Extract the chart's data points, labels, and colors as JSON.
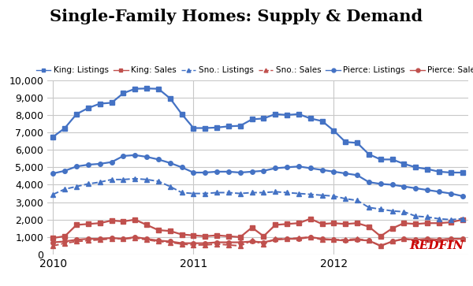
{
  "title": "Single-Family Homes: Supply & Demand",
  "background_color": "#ffffff",
  "grid_color": "#c8c8c8",
  "ylim": [
    0,
    10000
  ],
  "yticks": [
    0,
    1000,
    2000,
    3000,
    4000,
    5000,
    6000,
    7000,
    8000,
    9000,
    10000
  ],
  "n_points": 36,
  "x_tick_positions": [
    0,
    12,
    24
  ],
  "x_tick_labels": [
    "2010",
    "2011",
    "2012"
  ],
  "series": [
    {
      "label": "King: Listings",
      "color": "#4472c4",
      "marker": "s",
      "markersize": 4,
      "linewidth": 1.6,
      "linestyle": "-",
      "values": [
        6750,
        7250,
        8050,
        8400,
        8650,
        8700,
        9250,
        9500,
        9520,
        9500,
        8950,
        8050,
        7250,
        7250,
        7280,
        7350,
        7380,
        7750,
        7800,
        8050,
        8000,
        8050,
        7800,
        7650,
        7100,
        6450,
        6400,
        5750,
        5450,
        5450,
        5200,
        5000,
        4900,
        4750,
        4700,
        4700
      ]
    },
    {
      "label": "King: Sales",
      "color": "#c0504d",
      "marker": "s",
      "markersize": 4,
      "linewidth": 1.6,
      "linestyle": "-",
      "values": [
        950,
        1050,
        1700,
        1750,
        1800,
        1950,
        1900,
        2000,
        1700,
        1400,
        1350,
        1150,
        1100,
        1050,
        1100,
        1050,
        1000,
        1550,
        1050,
        1700,
        1750,
        1800,
        2050,
        1750,
        1800,
        1750,
        1800,
        1600,
        1050,
        1500,
        1800,
        1750,
        1800,
        1800,
        1850,
        2000
      ]
    },
    {
      "label": "Sno.: Listings",
      "color": "#4472c4",
      "marker": "^",
      "markersize": 4,
      "linewidth": 1.4,
      "linestyle": "--",
      "values": [
        3450,
        3750,
        3900,
        4050,
        4150,
        4300,
        4300,
        4350,
        4300,
        4200,
        3900,
        3550,
        3500,
        3500,
        3550,
        3550,
        3500,
        3550,
        3550,
        3600,
        3550,
        3500,
        3450,
        3400,
        3350,
        3200,
        3100,
        2700,
        2600,
        2500,
        2450,
        2200,
        2150,
        2050,
        2000,
        2050
      ]
    },
    {
      "label": "Sno.: Sales",
      "color": "#c0504d",
      "marker": "^",
      "markersize": 4,
      "linewidth": 1.4,
      "linestyle": "--",
      "values": [
        500,
        650,
        750,
        800,
        850,
        900,
        900,
        950,
        850,
        750,
        700,
        600,
        550,
        550,
        600,
        550,
        500,
        800,
        600,
        900,
        900,
        950,
        1000,
        850,
        850,
        850,
        900,
        800,
        500,
        750,
        900,
        800,
        850,
        850,
        900,
        900
      ]
    },
    {
      "label": "Pierce: Listings",
      "color": "#4472c4",
      "marker": "o",
      "markersize": 4,
      "linewidth": 1.6,
      "linestyle": "-",
      "values": [
        4650,
        4800,
        5050,
        5150,
        5200,
        5300,
        5650,
        5700,
        5600,
        5450,
        5250,
        5000,
        4700,
        4700,
        4750,
        4750,
        4700,
        4750,
        4800,
        4950,
        5000,
        5050,
        4950,
        4850,
        4750,
        4650,
        4550,
        4150,
        4050,
        4000,
        3900,
        3800,
        3700,
        3600,
        3500,
        3350
      ]
    },
    {
      "label": "Pierce: Sales",
      "color": "#c0504d",
      "marker": "o",
      "markersize": 4,
      "linewidth": 1.6,
      "linestyle": "-",
      "values": [
        700,
        750,
        850,
        900,
        900,
        950,
        900,
        1000,
        900,
        800,
        750,
        650,
        650,
        650,
        700,
        700,
        700,
        750,
        700,
        850,
        900,
        900,
        1000,
        900,
        850,
        800,
        850,
        800,
        500,
        750,
        900,
        850,
        900,
        850,
        900,
        900
      ]
    }
  ],
  "redfin_text_color": "#cc0000",
  "redfin_fontsize": 11,
  "title_fontsize": 15,
  "legend_fontsize": 7.5,
  "tick_fontsize": 9
}
